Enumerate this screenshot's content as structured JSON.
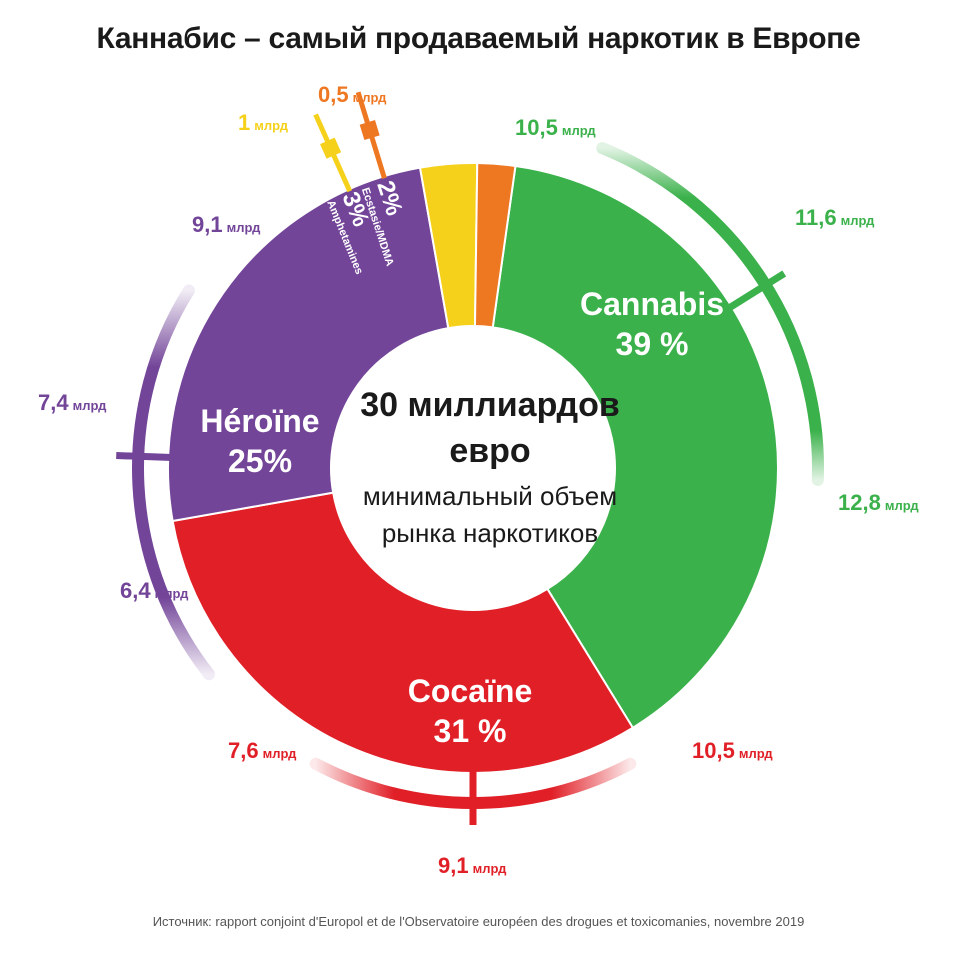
{
  "title": "Каннабис – самый продаваемый наркотик в Европе",
  "center": {
    "line1": "30 миллиардов",
    "line2": "евро",
    "line3": "минимальный объем",
    "line4": "рынка наркотиков"
  },
  "source": {
    "prefix": "Источник: ",
    "text": "rapport conjoint d'Europol et de l'Observatoire européen des drogues et toxicomanies, novembre 2019"
  },
  "colors": {
    "cannabis": "#3ab14a",
    "cocaine": "#e11f27",
    "heroine": "#734599",
    "amphetamines": "#f6d11b",
    "ecstasy": "#ee7722"
  },
  "chart_data": {
    "type": "pie",
    "donut": true,
    "total_label": "30 миллиардов евро",
    "unit": "млрд",
    "slices": [
      {
        "key": "cannabis",
        "label": "Cannabis",
        "percent_label": "39 %",
        "percent": 39,
        "range": {
          "low": "10,5",
          "mid": "11,6",
          "high": "12,8"
        }
      },
      {
        "key": "cocaine",
        "label": "Cocaïne",
        "percent_label": "31 %",
        "percent": 31,
        "range": {
          "low": "7,6",
          "mid": "9,1",
          "high": "10,5"
        }
      },
      {
        "key": "heroine",
        "label": "Héroïne",
        "percent_label": "25%",
        "percent": 25,
        "range": {
          "low": "6,4",
          "mid": "7,4",
          "high": "9,1"
        }
      },
      {
        "key": "amphetamines",
        "label": "Amphetamines",
        "percent_label": "3%",
        "percent": 3,
        "range": {
          "mid": "1"
        }
      },
      {
        "key": "ecstasy",
        "label": "Ecstasie/MDMA",
        "percent_label": "2%",
        "percent": 2,
        "range": {
          "mid": "0,5"
        }
      }
    ]
  }
}
